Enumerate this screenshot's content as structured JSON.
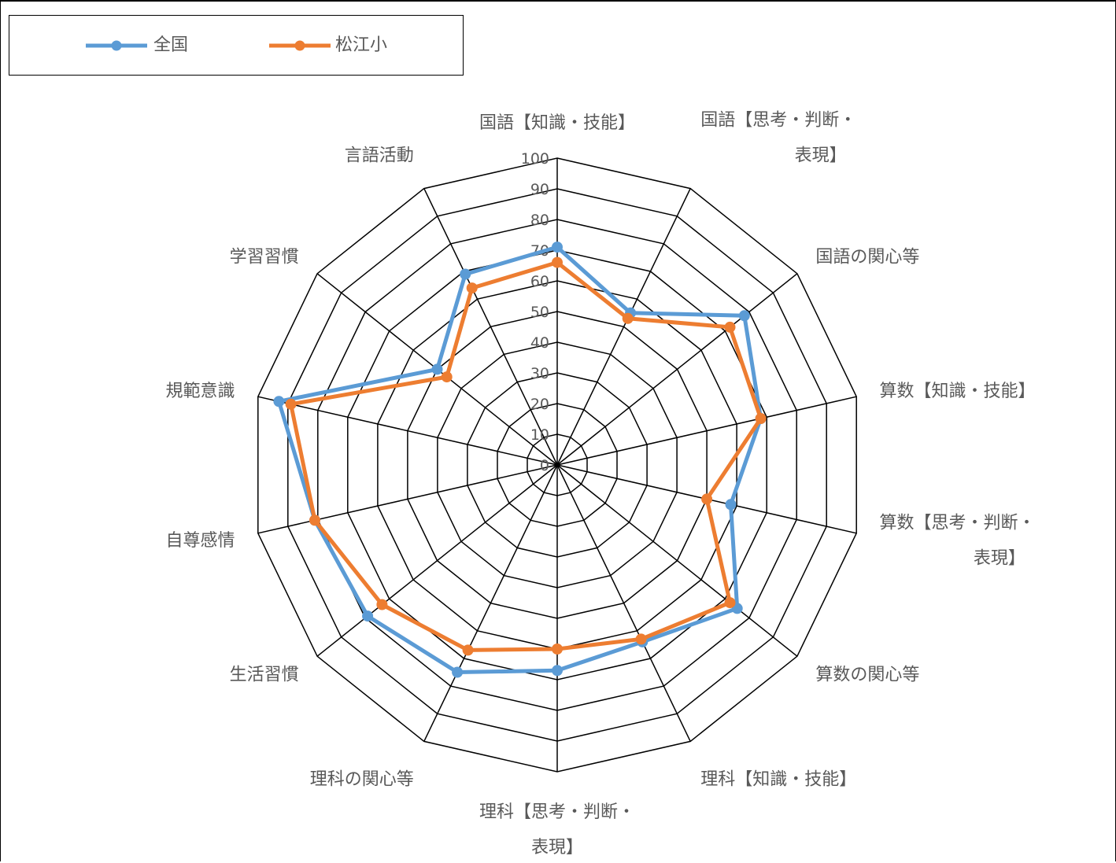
{
  "chart_data": {
    "type": "radar",
    "categories": [
      "国語【知識・技能】",
      "国語【思考・判断・表現】",
      "国語の関心等",
      "算数【知識・技能】",
      "算数【思考・判断・表現】",
      "算数の関心等",
      "理科【知識・技能】",
      "理科【思考・判断・表現】",
      "理科の関心等",
      "生活習慣",
      "自尊感情",
      "規範意識",
      "学習習慣",
      "言語活動"
    ],
    "category_label_lines": [
      [
        "国語【知識・技能】"
      ],
      [
        "国語【思考・判断・",
        "表現】"
      ],
      [
        "国語の関心等"
      ],
      [
        "算数【知識・技能】"
      ],
      [
        "算数【思考・判断・",
        "表現】"
      ],
      [
        "算数の関心等"
      ],
      [
        "理科【知識・技能】"
      ],
      [
        "理科【思考・判断・",
        "表現】"
      ],
      [
        "理科の関心等"
      ],
      [
        "生活習慣"
      ],
      [
        "自尊感情"
      ],
      [
        "規範意識"
      ],
      [
        "学習習慣"
      ],
      [
        "言語活動"
      ]
    ],
    "series": [
      {
        "name": "全国",
        "color": "#5B9BD5",
        "values": [
          71,
          55,
          78,
          68,
          58,
          75,
          64,
          67,
          75,
          79,
          81,
          93,
          50,
          69
        ]
      },
      {
        "name": "松江小",
        "color": "#ED7D31",
        "values": [
          66,
          53,
          72,
          68,
          50,
          72,
          63,
          60,
          67,
          73,
          81,
          89,
          46,
          64
        ]
      }
    ],
    "rlim": [
      0,
      100
    ],
    "ticks": [
      0,
      10,
      20,
      30,
      40,
      50,
      60,
      70,
      80,
      90,
      100
    ],
    "grid": true,
    "legend_position": "top-left"
  }
}
